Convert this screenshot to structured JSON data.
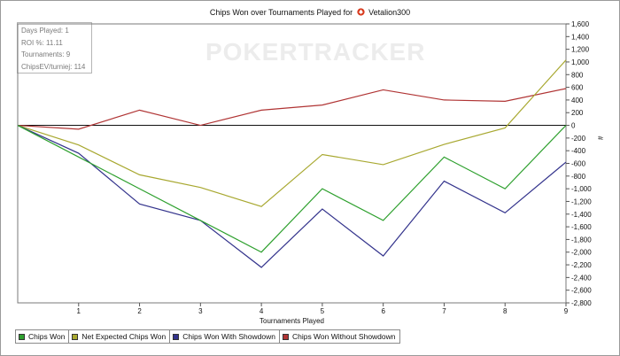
{
  "header": {
    "title_prefix": "Chips Won over Tournaments Played for",
    "player": "Vetalion300"
  },
  "watermark": {
    "text": "POKERTRACKER"
  },
  "stats": [
    {
      "label": "Days Played",
      "value": "1"
    },
    {
      "label": "ROI %",
      "value": "11.11"
    },
    {
      "label": "Tournaments",
      "value": "9"
    },
    {
      "label": "ChipsEV/turniej",
      "value": "114"
    }
  ],
  "legend": [
    {
      "name": "Chips Won",
      "color": "#2ea02e"
    },
    {
      "name": "Net Expected Chips Won",
      "color": "#a8a830"
    },
    {
      "name": "Chips Won With Showdown",
      "color": "#33338c"
    },
    {
      "name": "Chips Won Without Showdown",
      "color": "#b03434"
    }
  ],
  "chart_data": {
    "type": "line",
    "title": "Chips Won over Tournaments Played for Vetalion300",
    "xlabel": "Tournaments Played",
    "ylabel": "#",
    "x": [
      0,
      1,
      2,
      3,
      4,
      5,
      6,
      7,
      8,
      9
    ],
    "x_ticks": [
      1,
      2,
      3,
      4,
      5,
      6,
      7,
      8,
      9
    ],
    "xlim": [
      0,
      9
    ],
    "ylim": [
      -2800,
      1600
    ],
    "y_ticks": [
      1600,
      1400,
      1200,
      1000,
      800,
      600,
      400,
      200,
      0,
      -200,
      -400,
      -600,
      -800,
      -1000,
      -1200,
      -1400,
      -1600,
      -1800,
      -2000,
      -2200,
      -2400,
      -2600,
      -2800
    ],
    "y_tick_labels": [
      "1,600",
      "1,400",
      "1,200",
      "1,000",
      "800",
      "600",
      "400",
      "200",
      "0",
      "-200",
      "-400",
      "-600",
      "-800",
      "-1,000",
      "-1,200",
      "-1,400",
      "-1,600",
      "-1,800",
      "-2,000",
      "-2,200",
      "-2,400",
      "-2,600",
      "-2,800"
    ],
    "y_axis_side": "right",
    "grid": false,
    "zero_line": true,
    "legend_position": "bottom-left",
    "series": [
      {
        "name": "Chips Won",
        "color": "#2ea02e",
        "values": [
          0,
          -500,
          -1000,
          -1500,
          -2000,
          -1000,
          -1500,
          -500,
          -1000,
          0
        ]
      },
      {
        "name": "Net Expected Chips Won",
        "color": "#a8a830",
        "values": [
          0,
          -310,
          -780,
          -980,
          -1280,
          -460,
          -620,
          -300,
          -40,
          1030
        ]
      },
      {
        "name": "Chips Won With Showdown",
        "color": "#33338c",
        "values": [
          0,
          -440,
          -1240,
          -1500,
          -2240,
          -1320,
          -2060,
          -880,
          -1380,
          -580
        ]
      },
      {
        "name": "Chips Won Without Showdown",
        "color": "#b03434",
        "values": [
          0,
          -60,
          240,
          0,
          240,
          320,
          560,
          400,
          380,
          580
        ]
      }
    ]
  }
}
